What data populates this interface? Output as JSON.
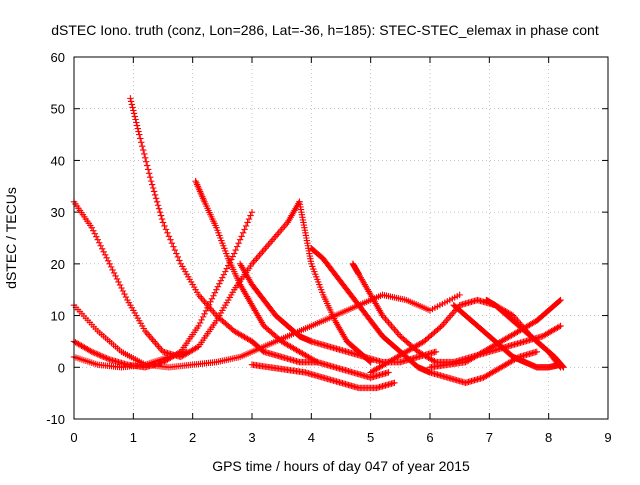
{
  "chart_data": {
    "type": "scatter",
    "title": "dSTEC Iono. truth (conz, Lon=286, Lat=-36, h=185): STEC-STEC_elemax in phase cont",
    "xlabel": "GPS time / hours of day 047 of year 2015",
    "ylabel": "dSTEC  / TECUs",
    "xlim": [
      0,
      9
    ],
    "ylim": [
      -10,
      60
    ],
    "x_ticks": [
      "0",
      "1",
      "2",
      "3",
      "4",
      "5",
      "6",
      "7",
      "8",
      "9"
    ],
    "y_ticks": [
      "-10",
      "0",
      "10",
      "20",
      "30",
      "40",
      "50",
      "60"
    ],
    "grid": true,
    "marker": "plus",
    "series_color": "#ff0000",
    "series": [
      {
        "x": [
          0.0,
          0.3,
          0.6,
          0.9,
          1.2,
          1.5,
          1.8,
          2.1,
          2.4,
          2.7,
          3.0,
          3.3,
          3.6,
          3.8
        ],
        "y": [
          32,
          27,
          20,
          13,
          7,
          3,
          2,
          4,
          9,
          15,
          20,
          24,
          28,
          32
        ]
      },
      {
        "x": [
          0.0,
          0.4,
          0.8,
          1.2,
          1.6,
          2.0,
          2.4,
          2.8,
          3.2,
          3.6,
          4.0,
          4.4,
          4.8,
          5.2,
          5.6,
          6.0,
          6.5
        ],
        "y": [
          12,
          7,
          3,
          0.5,
          0,
          0.5,
          1,
          2,
          4,
          6,
          8,
          10,
          12,
          14,
          13,
          11,
          14
        ]
      },
      {
        "x": [
          0.0,
          0.3,
          0.6,
          0.9,
          1.2,
          1.5,
          1.8,
          2.1,
          2.4,
          2.7,
          3.0
        ],
        "y": [
          5,
          3,
          1.5,
          0.5,
          0,
          1,
          3,
          8,
          15,
          22,
          30
        ]
      },
      {
        "x": [
          0.0,
          0.4,
          0.8,
          1.2,
          1.6,
          1.9
        ],
        "y": [
          2,
          0.5,
          0,
          0.5,
          2,
          3
        ]
      },
      {
        "x": [
          0.95,
          1.1,
          1.3,
          1.5,
          1.8,
          2.1,
          2.4,
          2.7,
          3.0,
          3.2,
          3.5,
          3.8,
          4.1
        ],
        "y": [
          52,
          45,
          36,
          28,
          20,
          14,
          10,
          7,
          5,
          3,
          2,
          1,
          1
        ]
      },
      {
        "x": [
          2.05,
          2.2,
          2.4,
          2.6,
          2.8,
          3.0,
          3.2,
          3.5,
          3.8,
          4.1,
          4.4,
          4.7,
          5.0,
          5.3
        ],
        "y": [
          36,
          32,
          27,
          21,
          16,
          12,
          8,
          5,
          3,
          1,
          0,
          -1,
          -2,
          -1
        ]
      },
      {
        "x": [
          2.8,
          3.0,
          3.2,
          3.4,
          3.6,
          3.8,
          4.0,
          4.3,
          4.6,
          4.9,
          5.2,
          5.5,
          5.8,
          6.1
        ],
        "y": [
          20,
          16,
          13,
          10,
          8,
          6,
          5,
          4,
          3,
          2,
          1,
          1,
          2,
          3
        ]
      },
      {
        "x": [
          3.8,
          3.9,
          4.0,
          4.2,
          4.4,
          4.6,
          4.8,
          5.0
        ],
        "y": [
          32,
          26,
          20,
          14,
          9,
          5,
          3,
          1
        ]
      },
      {
        "x": [
          4.0,
          4.2,
          4.4,
          4.6,
          4.8,
          5.0,
          5.2,
          5.4,
          5.6,
          5.8,
          6.0,
          6.3,
          6.6,
          6.9,
          7.2,
          7.5,
          7.8
        ],
        "y": [
          23,
          21,
          18,
          15,
          12,
          9,
          6,
          4,
          2,
          0,
          -1,
          -2,
          -3,
          -2,
          0,
          2,
          3
        ]
      },
      {
        "x": [
          4.7,
          4.8,
          5.0,
          5.2,
          5.5,
          5.8,
          6.1,
          6.4,
          6.7,
          7.0,
          7.3,
          7.6,
          7.9,
          8.2
        ],
        "y": [
          20,
          18,
          14,
          10,
          6,
          3,
          1,
          1,
          2,
          3,
          4,
          5,
          6,
          8
        ]
      },
      {
        "x": [
          3.0,
          3.3,
          3.6,
          3.9,
          4.2,
          4.5,
          4.8,
          5.1,
          5.4
        ],
        "y": [
          0.5,
          0,
          -0.5,
          -1,
          -2,
          -3,
          -4,
          -4,
          -3
        ]
      },
      {
        "x": [
          5.0,
          5.3,
          5.6,
          5.9,
          6.2,
          6.5,
          6.8,
          7.1,
          7.4,
          7.7,
          8.0,
          8.2
        ],
        "y": [
          -1,
          1,
          3,
          5,
          8,
          12,
          13,
          12,
          10,
          6,
          3,
          0
        ]
      },
      {
        "x": [
          6.4,
          6.6,
          6.8,
          7.0,
          7.2,
          7.4,
          7.6,
          7.8,
          8.0,
          8.2
        ],
        "y": [
          12,
          10,
          8,
          6,
          4,
          2,
          1,
          0,
          0,
          0.5
        ]
      },
      {
        "x": [
          6.95,
          7.1,
          7.3,
          7.5,
          7.7,
          7.9,
          8.1,
          8.25
        ],
        "y": [
          13,
          12,
          10,
          8,
          6,
          4,
          2,
          0
        ]
      },
      {
        "x": [
          6.0,
          6.3,
          6.6,
          6.9,
          7.2,
          7.5,
          7.8,
          8.0,
          8.2
        ],
        "y": [
          0,
          0.5,
          1,
          3,
          5,
          7,
          9,
          11,
          13
        ]
      }
    ]
  }
}
